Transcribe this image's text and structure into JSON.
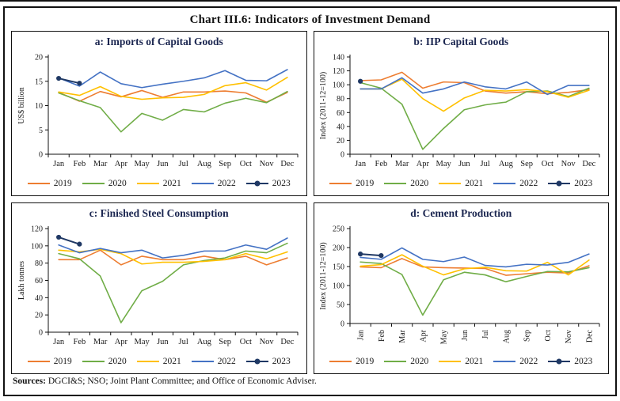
{
  "page": {
    "title": "Chart III.6: Indicators of Investment Demand",
    "sources_label": "Sources:",
    "sources_text": " DGCI&S; NSO; Joint Plant Committee; and Office of Economic Adviser."
  },
  "colors": {
    "y2019": "#ED7D31",
    "y2020": "#70AD47",
    "y2021": "#FFC000",
    "y2022": "#4472C4",
    "y2023": "#1F3864",
    "axis": "#111111",
    "panel_title": "#1b2650"
  },
  "legend_years": [
    "2019",
    "2020",
    "2021",
    "2022",
    "2023"
  ],
  "chart_data": [
    {
      "id": "a",
      "type": "line",
      "title": "a: Imports of Capital Goods",
      "ylabel": "US$ billion",
      "ylim": [
        0,
        20
      ],
      "ystep": 5,
      "x_labels_rotated": false,
      "grid": false,
      "legend_position": "bottom",
      "categories": [
        "Jan",
        "Feb",
        "Mar",
        "Apr",
        "May",
        "Jun",
        "Jul",
        "Aug",
        "Sep",
        "Oct",
        "Nov",
        "Dec"
      ],
      "series": [
        {
          "name": "2019",
          "color": "#ED7D31",
          "marker": false,
          "values": [
            12.7,
            10.9,
            12.9,
            11.8,
            13.1,
            11.7,
            12.8,
            12.8,
            13.0,
            12.6,
            10.7,
            12.7
          ]
        },
        {
          "name": "2020",
          "color": "#70AD47",
          "marker": false,
          "values": [
            12.6,
            11.0,
            9.6,
            4.6,
            8.4,
            7.0,
            9.2,
            8.7,
            10.5,
            11.5,
            10.6,
            12.9
          ]
        },
        {
          "name": "2021",
          "color": "#FFC000",
          "marker": false,
          "values": [
            12.8,
            12.1,
            13.9,
            11.9,
            11.3,
            11.6,
            11.7,
            12.3,
            14.1,
            14.7,
            13.2,
            15.8
          ]
        },
        {
          "name": "2022",
          "color": "#4472C4",
          "marker": false,
          "values": [
            15.7,
            14.0,
            16.9,
            14.5,
            13.7,
            14.4,
            15.0,
            15.7,
            17.2,
            15.2,
            15.1,
            17.4
          ]
        },
        {
          "name": "2023",
          "color": "#1F3864",
          "marker": true,
          "values": [
            15.6,
            14.6
          ]
        }
      ]
    },
    {
      "id": "b",
      "type": "line",
      "title": "b: IIP Capital Goods",
      "ylabel": "Index (2011-12=100)",
      "ylim": [
        0,
        140
      ],
      "ystep": 20,
      "x_labels_rotated": false,
      "grid": false,
      "legend_position": "bottom",
      "categories": [
        "Jan",
        "Feb",
        "Mar",
        "Apr",
        "May",
        "Jun",
        "Jul",
        "Aug",
        "Sep",
        "Oct",
        "Nov",
        "Dec"
      ],
      "series": [
        {
          "name": "2019",
          "color": "#ED7D31",
          "marker": false,
          "values": [
            106,
            107,
            118,
            95,
            104,
            103,
            91,
            88,
            90,
            87,
            89,
            93
          ]
        },
        {
          "name": "2020",
          "color": "#70AD47",
          "marker": false,
          "values": [
            103,
            95,
            72,
            7,
            37,
            64,
            71,
            75,
            90,
            91,
            83,
            95
          ]
        },
        {
          "name": "2021",
          "color": "#FFC000",
          "marker": false,
          "values": [
            94,
            94,
            108,
            80,
            62,
            81,
            92,
            91,
            93,
            90,
            82,
            92
          ]
        },
        {
          "name": "2022",
          "color": "#4472C4",
          "marker": false,
          "values": [
            94,
            94,
            110,
            88,
            94,
            104,
            97,
            94,
            104,
            86,
            99,
            99
          ]
        },
        {
          "name": "2023",
          "color": "#1F3864",
          "marker": true,
          "values": [
            105
          ]
        }
      ]
    },
    {
      "id": "c",
      "type": "line",
      "title": "c: Finished Steel Consumption",
      "ylabel": "Lakh tonnes",
      "ylim": [
        0,
        120
      ],
      "ystep": 20,
      "x_labels_rotated": false,
      "grid": false,
      "legend_position": "bottom",
      "categories": [
        "Jan",
        "Feb",
        "Mar",
        "Apr",
        "May",
        "Jun",
        "Jul",
        "Aug",
        "Sep",
        "Oct",
        "Nov",
        "Dec"
      ],
      "series": [
        {
          "name": "2019",
          "color": "#ED7D31",
          "marker": false,
          "values": [
            84,
            84,
            95,
            78,
            88,
            84,
            84,
            88,
            84,
            88,
            78,
            86
          ]
        },
        {
          "name": "2020",
          "color": "#70AD47",
          "marker": false,
          "values": [
            91,
            85,
            65,
            11,
            48,
            59,
            78,
            83,
            86,
            94,
            92,
            103
          ]
        },
        {
          "name": "2021",
          "color": "#FFC000",
          "marker": false,
          "values": [
            95,
            93,
            96,
            91,
            79,
            81,
            81,
            82,
            84,
            91,
            85,
            93
          ]
        },
        {
          "name": "2022",
          "color": "#4472C4",
          "marker": false,
          "values": [
            101,
            92,
            97,
            92,
            95,
            86,
            89,
            94,
            94,
            101,
            96,
            109
          ]
        },
        {
          "name": "2023",
          "color": "#1F3864",
          "marker": true,
          "values": [
            110,
            102
          ]
        }
      ]
    },
    {
      "id": "d",
      "type": "line",
      "title": "d: Cement Production",
      "ylabel": "Index (2011-12=100)",
      "ylim": [
        0,
        250
      ],
      "ystep": 50,
      "x_labels_rotated": true,
      "grid": false,
      "legend_position": "bottom",
      "categories": [
        "Jan",
        "Feb",
        "Mar",
        "Apr",
        "May",
        "Jun",
        "Jul",
        "Aug",
        "Sep",
        "Oct",
        "Nov",
        "Dec"
      ],
      "series": [
        {
          "name": "2019",
          "color": "#ED7D31",
          "marker": false,
          "values": [
            149,
            147,
            171,
            149,
            147,
            146,
            145,
            127,
            131,
            135,
            133,
            152
          ]
        },
        {
          "name": "2020",
          "color": "#70AD47",
          "marker": false,
          "values": [
            162,
            158,
            129,
            22,
            115,
            135,
            128,
            110,
            124,
            137,
            136,
            147
          ]
        },
        {
          "name": "2021",
          "color": "#FFC000",
          "marker": false,
          "values": [
            151,
            155,
            181,
            151,
            128,
            144,
            148,
            139,
            138,
            161,
            128,
            167
          ]
        },
        {
          "name": "2022",
          "color": "#4472C4",
          "marker": false,
          "values": [
            174,
            169,
            199,
            169,
            163,
            175,
            153,
            149,
            156,
            154,
            161,
            183
          ]
        },
        {
          "name": "2023",
          "color": "#1F3864",
          "marker": true,
          "values": [
            183,
            179
          ]
        }
      ]
    }
  ]
}
